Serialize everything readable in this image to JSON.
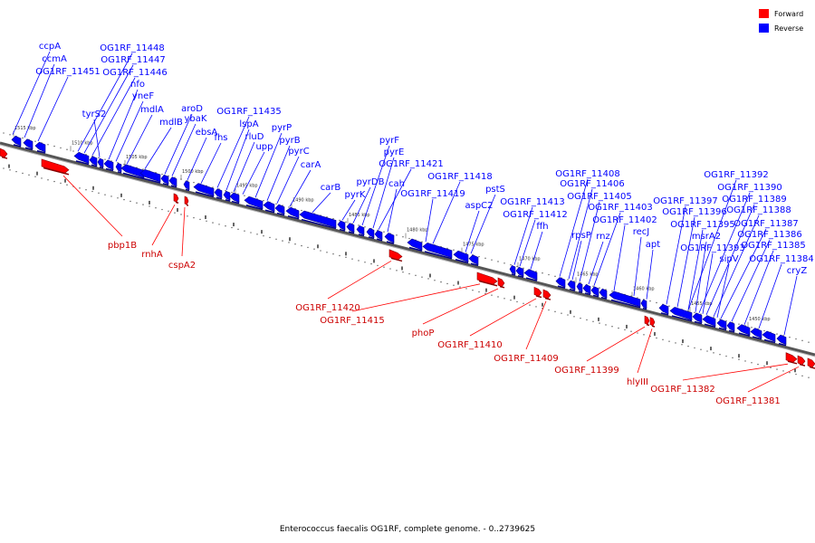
{
  "legend": {
    "forward_label": "Forward",
    "reverse_label": "Reverse",
    "forward_color": "#ff0000",
    "reverse_color": "#0000ff"
  },
  "caption": "Enterococcus faecalis OG1RF, complete genome. - 0..2739625",
  "scale_labels": [
    "1515 kbp",
    "1510 kbp",
    "1505 kbp",
    "1500 kbp",
    "1495 kbp",
    "1490 kbp",
    "1485 kbp",
    "1480 kbp",
    "1475 kbp",
    "1470 kbp",
    "1465 kbp",
    "1460 kbp",
    "1455 kbp",
    "1450 kbp"
  ],
  "reverse_genes": [
    "ccpA",
    "ccmA",
    "OG1RF_11451",
    "OG1RF_11448",
    "OG1RF_11447",
    "OG1RF_11446",
    "tyrS2",
    "nfo",
    "yneF",
    "mdlA",
    "mdlB",
    "aroD",
    "ybaK",
    "ebsA",
    "fhs",
    "OG1RF_11435",
    "lspA",
    "rluD",
    "upp",
    "pyrP",
    "pyrB",
    "pyrC",
    "carA",
    "carB",
    "pyrK",
    "pyrDB",
    "pyrF",
    "pyrE",
    "OG1RF_11421",
    "cah",
    "OG1RF_11418",
    "OG1RF_11419",
    "pstS",
    "aspC2",
    "OG1RF_11413",
    "OG1RF_11412",
    "ffh",
    "OG1RF_11408",
    "OG1RF_11406",
    "OG1RF_11405",
    "OG1RF_11403",
    "rpsP",
    "rnz",
    "OG1RF_11402",
    "recJ",
    "apt",
    "OG1RF_11392",
    "OG1RF_11390",
    "OG1RF_11389",
    "OG1RF_11397",
    "OG1RF_11396",
    "OG1RF_11388",
    "OG1RF_11395",
    "OG1RF_11387",
    "msrA2",
    "OG1RF_11386",
    "OG1RF_11393",
    "OG1RF_11385",
    "sipV",
    "OG1RF_11384",
    "cryZ"
  ],
  "forward_genes": [
    "pbp1B",
    "rnhA",
    "cspA2",
    "OG1RF_11420",
    "OG1RF_11415",
    "phoP",
    "OG1RF_11410",
    "OG1RF_11409",
    "OG1RF_11399",
    "hlyIII",
    "OG1RF_11382",
    "OG1RF_11381"
  ]
}
